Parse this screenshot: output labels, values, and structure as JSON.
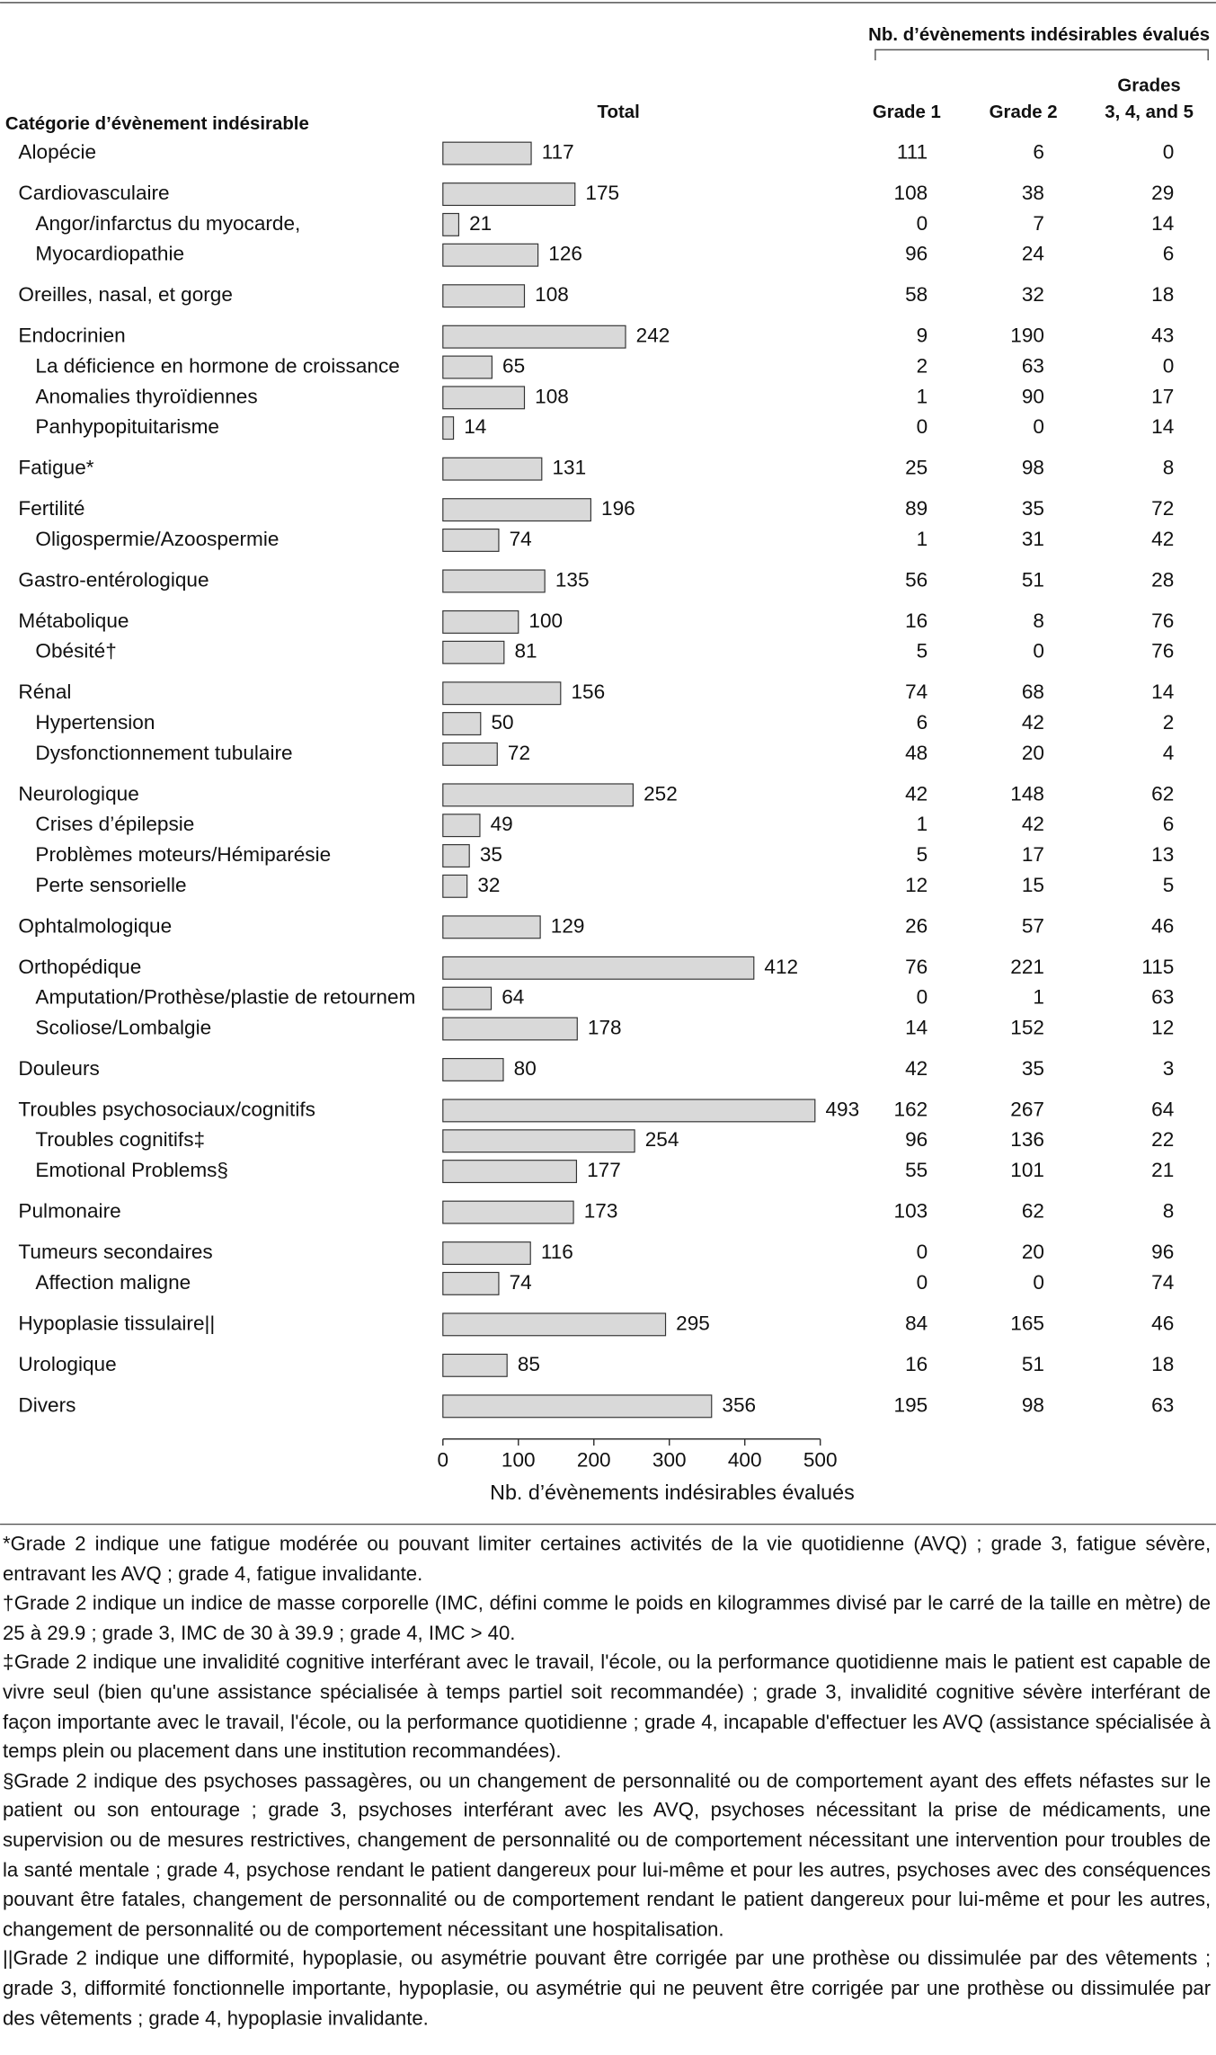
{
  "chart_data": {
    "type": "bar",
    "group_header": "Nb. d’évènements indésirables évalués",
    "category_header": "Catégorie d’évènement indésirable",
    "total_header": "Total",
    "xlabel": "Nb. d’évènements indésirables évalués",
    "categories": [
      "Alopécie",
      "Cardiovasculaire",
      "Angor/infarctus du myocarde,",
      "Myocardiopathie",
      "Oreilles, nasal, et gorge",
      "Endocrinien",
      "La déficience en hormone de croissance",
      "Anomalies thyroïdiennes",
      "Panhypopituitarisme",
      "Fatigue*",
      "Fertilité",
      "Oligospermie/Azoospermie",
      "Gastro-entérologique",
      "Métabolique",
      "Obésité†",
      "Rénal",
      "Hypertension",
      "Dysfonctionnement tubulaire",
      "Neurologique",
      "Crises d’épilepsie",
      "Problèmes moteurs/Hémiparésie",
      "Perte sensorielle",
      "Ophtalmologique",
      "Orthopédique",
      "Amputation/Prothèse/plastie de retournem",
      "Scoliose/Lombalgie",
      "Douleurs",
      "Troubles psychosociaux/cognitifs",
      "Troubles cognitifs‡",
      "Emotional Problems§",
      "Pulmonaire",
      "Tumeurs secondaires",
      "Affection maligne",
      "Hypoplasie tissulaire||",
      "Urologique",
      "Divers"
    ],
    "indent": [
      0,
      0,
      1,
      1,
      0,
      0,
      1,
      1,
      1,
      0,
      0,
      1,
      0,
      0,
      1,
      0,
      1,
      1,
      0,
      1,
      1,
      1,
      0,
      0,
      1,
      1,
      0,
      0,
      1,
      1,
      0,
      0,
      1,
      0,
      0,
      0
    ],
    "values": [
      117,
      175,
      21,
      126,
      108,
      242,
      65,
      108,
      14,
      131,
      196,
      74,
      135,
      100,
      81,
      156,
      50,
      72,
      252,
      49,
      35,
      32,
      129,
      412,
      64,
      178,
      80,
      493,
      254,
      177,
      173,
      116,
      74,
      295,
      85,
      356
    ],
    "color": "#d9d9d9",
    "xlim": [
      0,
      500
    ],
    "xticks": [
      0,
      100,
      200,
      300,
      400,
      500
    ],
    "grade_columns": [
      {
        "name": [
          "Grade 1"
        ],
        "values": [
          111,
          108,
          0,
          96,
          58,
          9,
          2,
          1,
          0,
          25,
          89,
          1,
          56,
          16,
          5,
          74,
          6,
          48,
          42,
          1,
          5,
          12,
          26,
          76,
          0,
          14,
          42,
          162,
          96,
          55,
          103,
          0,
          0,
          84,
          16,
          195
        ]
      },
      {
        "name": [
          "Grade 2"
        ],
        "values": [
          6,
          38,
          7,
          24,
          32,
          190,
          63,
          90,
          0,
          98,
          35,
          31,
          51,
          8,
          0,
          68,
          42,
          20,
          148,
          42,
          17,
          15,
          57,
          221,
          1,
          152,
          35,
          267,
          136,
          101,
          62,
          20,
          0,
          165,
          51,
          98
        ]
      },
      {
        "name": [
          "Grades",
          "3, 4, and 5"
        ],
        "values": [
          0,
          29,
          14,
          6,
          18,
          43,
          0,
          17,
          14,
          8,
          72,
          42,
          28,
          76,
          76,
          14,
          2,
          4,
          62,
          6,
          13,
          5,
          46,
          115,
          63,
          12,
          3,
          64,
          22,
          21,
          8,
          96,
          74,
          46,
          18,
          63
        ]
      }
    ],
    "footnotes": [
      "*Grade 2 indique une fatigue modérée ou pouvant limiter certaines activités de la vie quotidienne (AVQ) ; grade 3, fatigue sévère, entravant les AVQ ; grade 4, fatigue invalidante.",
      "†Grade 2 indique un indice de masse corporelle (IMC, défini comme le poids en kilogrammes divisé par le carré de la taille en mètre) de 25 à 29.9 ; grade 3, IMC de 30 à 39.9 ; grade 4, IMC > 40.",
      "‡Grade 2 indique une invalidité cognitive interférant avec le travail, l'école, ou la performance quotidienne mais le patient est capable de vivre seul (bien qu'une assistance spécialisée à temps partiel soit recommandée) ; grade 3, invalidité cognitive sévère interférant de façon importante avec le travail, l'école, ou la performance quotidienne ; grade 4, incapable d'effectuer les AVQ (assistance spécialisée à temps plein ou placement dans une institution recommandées).",
      "§Grade 2 indique des psychoses passagères, ou un changement de personnalité ou de comportement ayant des effets néfastes sur le patient ou son entourage ; grade 3, psychoses interférant avec les AVQ, psychoses nécessitant la prise de médicaments, une supervision ou de mesures restrictives, changement de personnalité ou de comportement nécessitant une intervention pour troubles de la santé mentale ; grade 4, psychose rendant le patient dangereux pour lui-même et pour les autres, psychoses avec des conséquences pouvant être fatales, changement de personnalité ou de comportement rendant le patient dangereux pour lui-même et pour les autres, changement de personnalité ou de comportement nécessitant une hospitalisation.",
      "||Grade 2 indique une difformité, hypoplasie, ou asymétrie pouvant être corrigée par une prothèse ou dissimulée par des vêtements ; grade 3,  difformité fonctionnelle importante, hypoplasie,  ou asymétrie qui ne peuvent être corrigée par une prothèse ou dissimulée par des vêtements ; grade 4, hypoplasie invalidante."
    ]
  }
}
